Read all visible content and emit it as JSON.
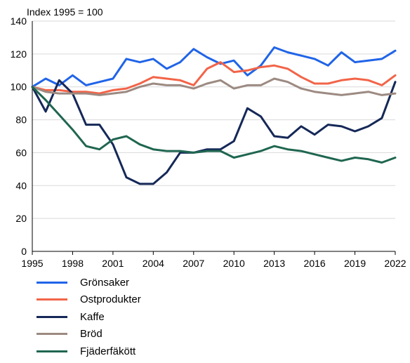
{
  "chart_data": {
    "type": "line",
    "ylabel": "Index 1995 = 100",
    "ylim": [
      0,
      140
    ],
    "yticks": [
      0,
      20,
      40,
      60,
      80,
      100,
      120,
      140
    ],
    "xlim": [
      1995,
      2022
    ],
    "xticks": [
      1995,
      1998,
      2001,
      2004,
      2007,
      2010,
      2013,
      2016,
      2019,
      2022
    ],
    "x": [
      1995,
      1996,
      1997,
      1998,
      1999,
      2000,
      2001,
      2002,
      2003,
      2004,
      2005,
      2006,
      2007,
      2008,
      2009,
      2010,
      2011,
      2012,
      2013,
      2014,
      2015,
      2016,
      2017,
      2018,
      2019,
      2020,
      2021,
      2022
    ],
    "grid": "horizontal",
    "legend_position": "bottom",
    "series": [
      {
        "name": "Grönsaker",
        "color": "#2064e8",
        "values": [
          100,
          105,
          101,
          107,
          101,
          103,
          105,
          117,
          115,
          117,
          111,
          115,
          123,
          118,
          114,
          116,
          107,
          113,
          124,
          121,
          119,
          117,
          113,
          121,
          115,
          116,
          117,
          122
        ]
      },
      {
        "name": "Ostprodukter",
        "color": "#f26448",
        "values": [
          100,
          98,
          98,
          97,
          97,
          96,
          98,
          99,
          102,
          106,
          105,
          104,
          101,
          111,
          115,
          109,
          110,
          112,
          113,
          111,
          106,
          102,
          102,
          104,
          105,
          104,
          101,
          107
        ]
      },
      {
        "name": "Kaffe",
        "color": "#152858",
        "values": [
          100,
          85,
          104,
          96,
          77,
          77,
          65,
          45,
          41,
          41,
          48,
          60,
          60,
          62,
          62,
          67,
          87,
          82,
          70,
          69,
          76,
          71,
          77,
          76,
          73,
          76,
          81,
          103
        ]
      },
      {
        "name": "Bröd",
        "color": "#9c8a82",
        "values": [
          100,
          97,
          96,
          96,
          96,
          95,
          96,
          97,
          100,
          102,
          101,
          101,
          99,
          102,
          104,
          99,
          101,
          101,
          105,
          103,
          99,
          97,
          96,
          95,
          96,
          97,
          95,
          96
        ]
      },
      {
        "name": "Fjäderfäkött",
        "color": "#1f6650",
        "values": [
          100,
          92,
          83,
          74,
          64,
          62,
          68,
          70,
          65,
          62,
          61,
          61,
          60,
          61,
          61,
          57,
          59,
          61,
          64,
          62,
          61,
          59,
          57,
          55,
          57,
          56,
          54,
          57
        ]
      }
    ]
  }
}
